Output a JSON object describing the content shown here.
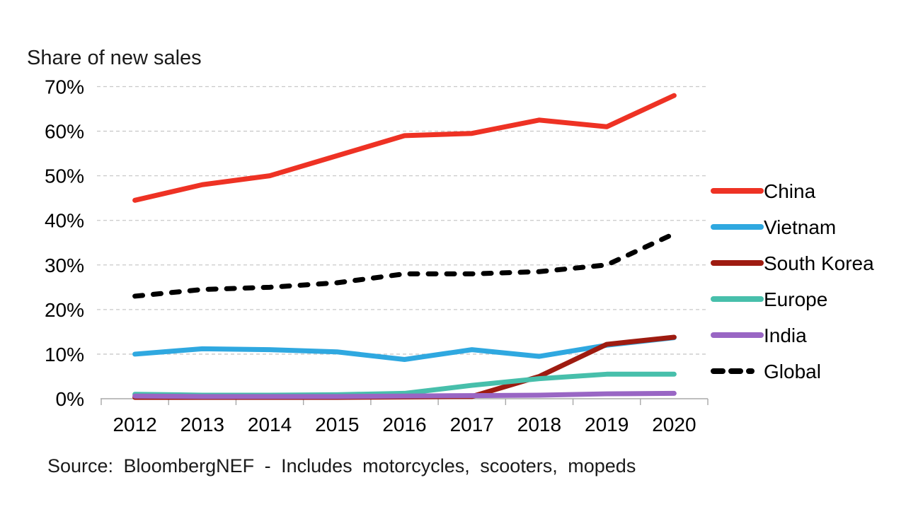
{
  "chart_data": {
    "type": "line",
    "title": "Share of new sales",
    "source_note": "Source: BloombergNEF - Includes motorcycles, scooters, mopeds",
    "categories": [
      "2012",
      "2013",
      "2014",
      "2015",
      "2016",
      "2017",
      "2018",
      "2019",
      "2020"
    ],
    "ylim": [
      0,
      70
    ],
    "yticks": [
      0,
      10,
      20,
      30,
      40,
      50,
      60,
      70
    ],
    "tick_suffix": "%",
    "grid": "horizontal-dashed",
    "legend_position": "right",
    "grid_color": "#C9C9C9",
    "axis_color": "#A8A8A8",
    "text_color": "#000000",
    "series": [
      {
        "name": "China",
        "color": "#EE3224",
        "style": "solid",
        "values": [
          44.5,
          48,
          50,
          54.5,
          59,
          59.5,
          62.5,
          61,
          68
        ]
      },
      {
        "name": "Vietnam",
        "color": "#2FA8E0",
        "style": "solid",
        "values": [
          10,
          11.2,
          11,
          10.5,
          8.8,
          11,
          9.5,
          12,
          13.7
        ]
      },
      {
        "name": "South Korea",
        "color": "#9E1B10",
        "style": "solid",
        "values": [
          0.3,
          0.3,
          0.3,
          0.3,
          0.4,
          0.5,
          5,
          12.2,
          13.8
        ]
      },
      {
        "name": "Europe",
        "color": "#47BFAB",
        "style": "solid",
        "values": [
          1,
          0.8,
          0.8,
          0.9,
          1.2,
          3,
          4.5,
          5.5,
          5.5
        ]
      },
      {
        "name": "India",
        "color": "#9966C4",
        "style": "solid",
        "values": [
          0.6,
          0.5,
          0.5,
          0.5,
          0.6,
          0.7,
          0.8,
          1.1,
          1.2
        ]
      },
      {
        "name": "Global",
        "color": "#000000",
        "style": "dashed",
        "values": [
          23,
          24.5,
          25,
          26,
          28,
          28,
          28.5,
          30,
          37
        ]
      }
    ]
  }
}
